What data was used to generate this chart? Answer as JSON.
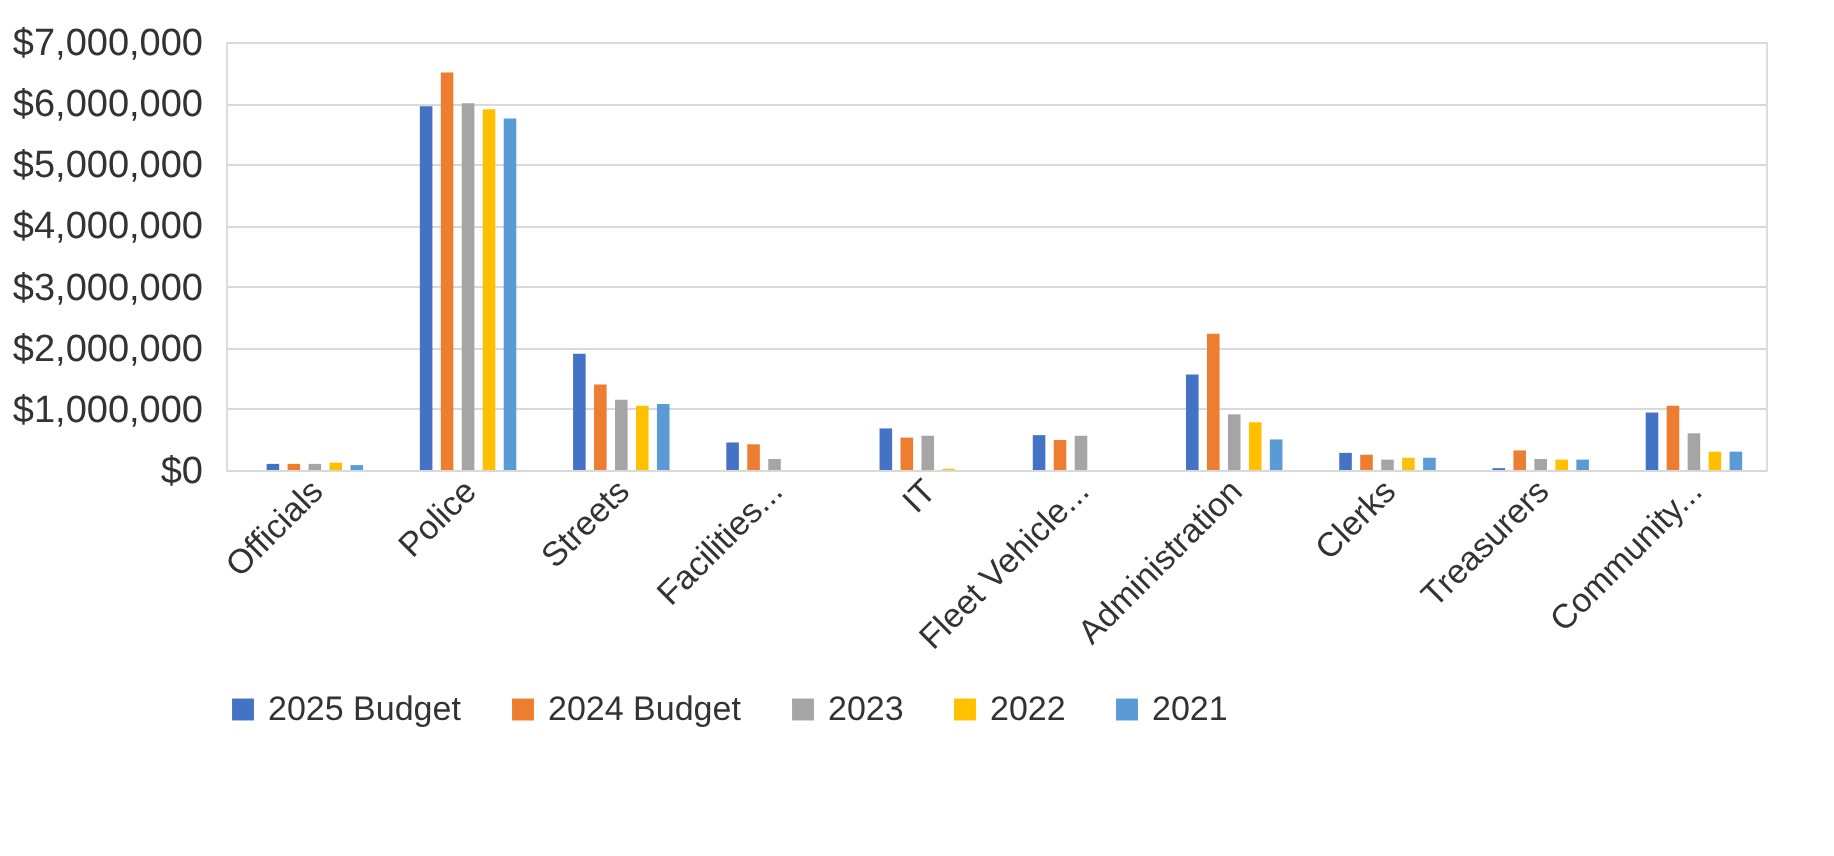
{
  "chart_data": {
    "type": "bar",
    "categories": [
      "Officials",
      "Police",
      "Streets",
      "Facilities...",
      "IT",
      "Fleet Vehicle...",
      "Administration",
      "Clerks",
      "Treasurers",
      "Community..."
    ],
    "series": [
      {
        "name": "2025 Budget",
        "color": "#4472c4",
        "values": [
          100000,
          5950000,
          1900000,
          450000,
          680000,
          570000,
          1560000,
          280000,
          30000,
          940000
        ]
      },
      {
        "name": "2024 Budget",
        "color": "#ed7d31",
        "values": [
          100000,
          6500000,
          1400000,
          420000,
          530000,
          490000,
          2230000,
          250000,
          320000,
          1050000
        ]
      },
      {
        "name": "2023",
        "color": "#a5a5a5",
        "values": [
          100000,
          6000000,
          1150000,
          180000,
          560000,
          560000,
          910000,
          170000,
          180000,
          600000
        ]
      },
      {
        "name": "2022",
        "color": "#ffc000",
        "values": [
          120000,
          5900000,
          1050000,
          null,
          20000,
          null,
          780000,
          200000,
          170000,
          300000
        ]
      },
      {
        "name": "2021",
        "color": "#5b9bd5",
        "values": [
          80000,
          5750000,
          1080000,
          null,
          null,
          null,
          500000,
          200000,
          170000,
          300000
        ]
      }
    ],
    "ylim": [
      0,
      7000000
    ],
    "yticks": [
      {
        "value": 0,
        "label": "$0"
      },
      {
        "value": 1000000,
        "label": "$1,000,000"
      },
      {
        "value": 2000000,
        "label": "$2,000,000"
      },
      {
        "value": 3000000,
        "label": "$3,000,000"
      },
      {
        "value": 4000000,
        "label": "$4,000,000"
      },
      {
        "value": 5000000,
        "label": "$5,000,000"
      },
      {
        "value": 6000000,
        "label": "$6,000,000"
      },
      {
        "value": 7000000,
        "label": "$7,000,000"
      }
    ],
    "grid": "y",
    "legend": "bottom"
  }
}
